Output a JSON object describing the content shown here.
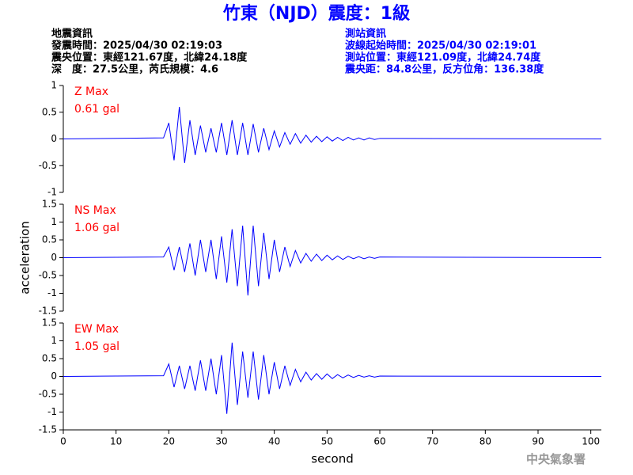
{
  "header": {
    "title": "竹東（NJD）震度：1級",
    "left": [
      "地震資訊",
      "發震時間：2025/04/30 02:19:03",
      "震央位置：東經121.67度，北緯24.18度",
      "深　度：27.5公里，芮氏規模：4.6"
    ],
    "right": [
      "測站資訊",
      "波線起始時間：2025/04/30 02:19:01",
      "測站位置：東經121.09度，北緯24.74度",
      "震央距：84.8公里，反方位角：136.38度"
    ]
  },
  "chart_data": [
    {
      "type": "line",
      "label": "Z Max",
      "peak": "0.61 gal",
      "annotation_color": "#ff0000",
      "color": "#0000ff",
      "xlim": [
        0,
        102
      ],
      "ylim": [
        -1,
        1
      ],
      "yticks": [
        -1,
        -0.5,
        0,
        0.5,
        1
      ],
      "x": [
        0,
        19,
        20,
        21,
        22,
        23,
        24,
        25,
        26,
        27,
        28,
        29,
        30,
        31,
        32,
        33,
        34,
        35,
        36,
        37,
        38,
        39,
        40,
        41,
        42,
        43,
        44,
        45,
        46,
        47,
        48,
        49,
        50,
        51,
        52,
        53,
        54,
        55,
        56,
        57,
        58,
        59,
        60,
        102
      ],
      "values": [
        0,
        0.02,
        0.3,
        -0.4,
        0.6,
        -0.45,
        0.35,
        -0.3,
        0.25,
        -0.25,
        0.2,
        -0.25,
        0.3,
        -0.3,
        0.35,
        -0.3,
        0.3,
        -0.3,
        0.28,
        -0.25,
        0.2,
        -0.2,
        0.15,
        -0.15,
        0.12,
        -0.1,
        0.1,
        -0.08,
        0.07,
        -0.06,
        0.05,
        -0.05,
        0.04,
        -0.04,
        0.03,
        -0.03,
        0.03,
        -0.02,
        0.02,
        -0.02,
        0.02,
        -0.01,
        0.01,
        0
      ]
    },
    {
      "type": "line",
      "label": "NS Max",
      "peak": "1.06 gal",
      "annotation_color": "#ff0000",
      "color": "#0000ff",
      "y_label": "acceleration",
      "xlim": [
        0,
        102
      ],
      "ylim": [
        -1.5,
        1.5
      ],
      "yticks": [
        -1.5,
        -1,
        -0.5,
        0,
        0.5,
        1,
        1.5
      ],
      "x": [
        0,
        19,
        20,
        21,
        22,
        23,
        24,
        25,
        26,
        27,
        28,
        29,
        30,
        31,
        32,
        33,
        34,
        35,
        36,
        37,
        38,
        39,
        40,
        41,
        42,
        43,
        44,
        45,
        46,
        47,
        48,
        49,
        50,
        51,
        52,
        53,
        54,
        55,
        56,
        57,
        58,
        59,
        60,
        102
      ],
      "values": [
        0,
        0.02,
        0.3,
        -0.35,
        0.3,
        -0.4,
        0.4,
        -0.5,
        0.5,
        -0.4,
        0.5,
        -0.6,
        0.6,
        -0.7,
        0.8,
        -0.8,
        0.9,
        -1.06,
        0.9,
        -0.8,
        0.7,
        -0.6,
        0.5,
        -0.4,
        0.3,
        -0.25,
        0.2,
        -0.15,
        0.12,
        -0.1,
        0.1,
        -0.08,
        0.07,
        -0.06,
        0.05,
        -0.05,
        0.04,
        -0.03,
        0.03,
        -0.03,
        0.02,
        -0.02,
        0.02,
        0
      ]
    },
    {
      "type": "line",
      "label": "EW Max",
      "peak": "1.05 gal",
      "annotation_color": "#ff0000",
      "color": "#0000ff",
      "x_label": "second",
      "xlim": [
        0,
        102
      ],
      "ylim": [
        -1.5,
        1.5
      ],
      "yticks": [
        -1.5,
        -1,
        -0.5,
        0,
        0.5,
        1,
        1.5
      ],
      "xticks": [
        0,
        10,
        20,
        30,
        40,
        50,
        60,
        70,
        80,
        90,
        100
      ],
      "x": [
        0,
        19,
        20,
        21,
        22,
        23,
        24,
        25,
        26,
        27,
        28,
        29,
        30,
        31,
        32,
        33,
        34,
        35,
        36,
        37,
        38,
        39,
        40,
        41,
        42,
        43,
        44,
        45,
        46,
        47,
        48,
        49,
        50,
        51,
        52,
        53,
        54,
        55,
        56,
        57,
        58,
        59,
        60,
        102
      ],
      "values": [
        0,
        0.02,
        0.35,
        -0.3,
        0.3,
        -0.35,
        0.3,
        -0.4,
        0.45,
        -0.4,
        0.5,
        -0.5,
        0.6,
        -1.05,
        0.95,
        -0.8,
        0.7,
        -0.6,
        0.7,
        -0.65,
        0.6,
        -0.5,
        0.4,
        -0.35,
        0.3,
        -0.25,
        0.2,
        -0.15,
        0.12,
        -0.1,
        0.08,
        -0.08,
        0.07,
        -0.06,
        0.05,
        -0.04,
        0.04,
        -0.03,
        0.03,
        -0.02,
        0.02,
        -0.02,
        0.01,
        0
      ]
    }
  ],
  "footer": "中央氣象署"
}
